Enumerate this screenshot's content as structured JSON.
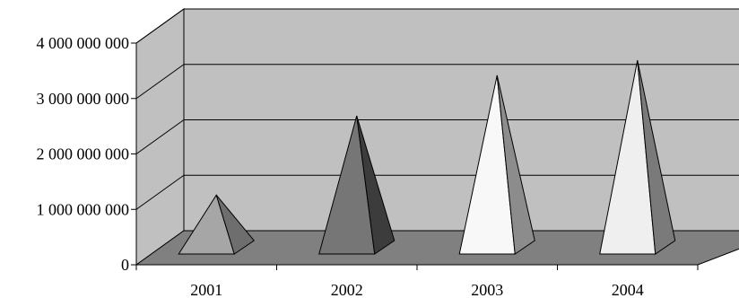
{
  "chart_data": {
    "type": "bar",
    "style": "3d-pyramid",
    "categories": [
      "2001",
      "2002",
      "2003",
      "2004"
    ],
    "values": [
      1080000000,
      2510000000,
      3240000000,
      3510000000
    ],
    "ylim": [
      0,
      4000000000
    ],
    "yticks": [
      "0",
      "1 000 000 000",
      "2 000 000 000",
      "3 000 000 000",
      "4 000 000 000"
    ],
    "xlabel": "",
    "ylabel": "",
    "title": "",
    "grid": true,
    "legend": "none"
  },
  "colors": {
    "wall": "#c0c0c0",
    "floor": "#808080",
    "grid": "#000000",
    "pyramid_fronts": [
      "#a6a6a6",
      "#767676",
      "#f8f8f8",
      "#efefef"
    ],
    "pyramid_sides": [
      "#6e6e6e",
      "#3c3c3c",
      "#8c8c8c",
      "#7a7a7a"
    ]
  }
}
